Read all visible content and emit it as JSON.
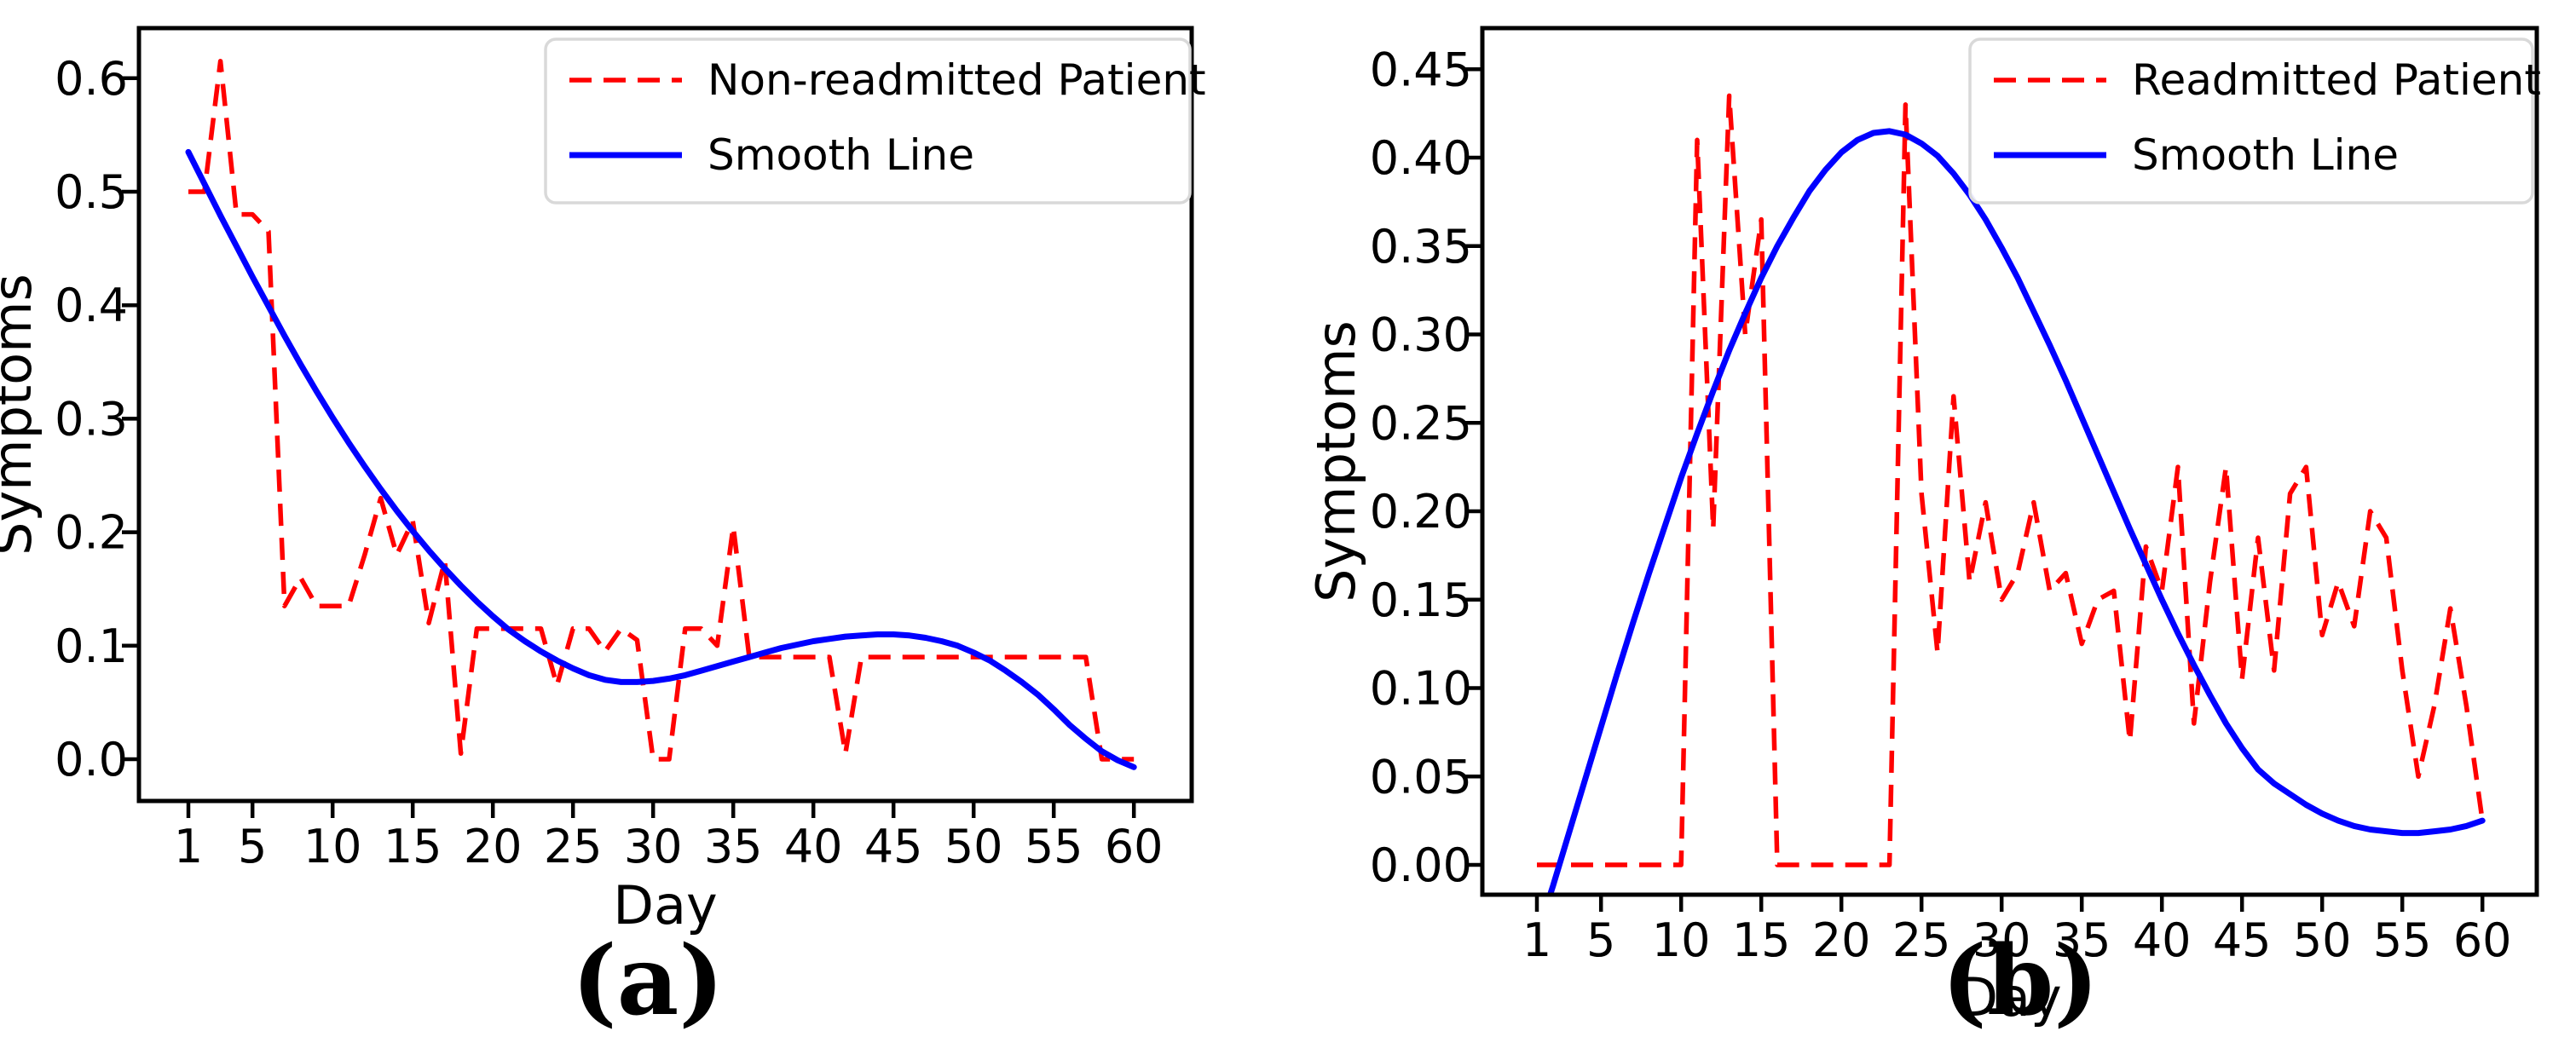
{
  "figure": {
    "description": "Two line charts of patient symptoms over 60 days",
    "colors": {
      "patient_line": "#ff0000",
      "smooth_line": "#0000ff",
      "axis": "#000000",
      "legend_border": "#d9d9d9"
    }
  },
  "chart_data": [
    {
      "type": "line",
      "panel": "a",
      "caption": "(a)",
      "xlabel": "Day",
      "ylabel": "Symptoms",
      "x_range": [
        1,
        60
      ],
      "x_ticks": [
        1,
        5,
        10,
        15,
        20,
        25,
        30,
        35,
        40,
        45,
        50,
        55,
        60
      ],
      "y_ticks": {
        "values": [
          0.0,
          0.1,
          0.2,
          0.3,
          0.4,
          0.5,
          0.6
        ],
        "labels": [
          "0.0",
          "0.1",
          "0.2",
          "0.3",
          "0.4",
          "0.5",
          "0.6"
        ]
      },
      "ylim": [
        -0.037,
        0.644
      ],
      "grid": false,
      "legend": {
        "position": "upper right",
        "entries": [
          {
            "label": "Non-readmitted Patient",
            "color": "#ff0000",
            "style": "dashed"
          },
          {
            "label": "Smooth Line",
            "color": "#0000ff",
            "style": "solid"
          }
        ]
      },
      "series": [
        {
          "name": "Non-readmitted Patient",
          "color": "#ff0000",
          "style": "dashed",
          "values": [
            0.5,
            0.5,
            0.615,
            0.48,
            0.48,
            0.465,
            0.135,
            0.16,
            0.135,
            0.135,
            0.135,
            0.18,
            0.23,
            0.18,
            0.21,
            0.12,
            0.175,
            0.005,
            0.115,
            0.115,
            0.115,
            0.115,
            0.115,
            0.065,
            0.115,
            0.115,
            0.095,
            0.115,
            0.105,
            0.0,
            0.0,
            0.115,
            0.115,
            0.1,
            0.205,
            0.09,
            0.09,
            0.09,
            0.09,
            0.09,
            0.09,
            0.005,
            0.09,
            0.09,
            0.09,
            0.09,
            0.09,
            0.09,
            0.09,
            0.09,
            0.09,
            0.09,
            0.09,
            0.09,
            0.09,
            0.09,
            0.09,
            0.0,
            0.0,
            0.0
          ]
        },
        {
          "name": "Smooth Line",
          "color": "#0000ff",
          "style": "solid",
          "values": [
            0.535,
            0.507,
            0.479,
            0.452,
            0.425,
            0.399,
            0.373,
            0.348,
            0.324,
            0.301,
            0.279,
            0.258,
            0.238,
            0.219,
            0.201,
            0.184,
            0.168,
            0.153,
            0.139,
            0.126,
            0.114,
            0.104,
            0.095,
            0.087,
            0.08,
            0.074,
            0.07,
            0.068,
            0.068,
            0.069,
            0.071,
            0.074,
            0.078,
            0.082,
            0.086,
            0.09,
            0.094,
            0.098,
            0.101,
            0.104,
            0.106,
            0.108,
            0.109,
            0.11,
            0.11,
            0.109,
            0.107,
            0.104,
            0.1,
            0.094,
            0.087,
            0.078,
            0.068,
            0.057,
            0.044,
            0.03,
            0.018,
            0.007,
            -0.001,
            -0.007
          ]
        }
      ]
    },
    {
      "type": "line",
      "panel": "b",
      "caption": "(b)",
      "xlabel": "Day",
      "ylabel": "Symptoms",
      "x_range": [
        1,
        60
      ],
      "x_ticks": [
        1,
        5,
        10,
        15,
        20,
        25,
        30,
        35,
        40,
        45,
        50,
        55,
        60
      ],
      "y_ticks": {
        "values": [
          0.0,
          0.05,
          0.1,
          0.15,
          0.2,
          0.25,
          0.3,
          0.35,
          0.4,
          0.45
        ],
        "labels": [
          "0.00",
          "0.05",
          "0.10",
          "0.15",
          "0.20",
          "0.25",
          "0.30",
          "0.35",
          "0.40",
          "0.45"
        ]
      },
      "ylim": [
        -0.017,
        0.473
      ],
      "grid": false,
      "legend": {
        "position": "upper right",
        "entries": [
          {
            "label": "Readmitted Patient",
            "color": "#ff0000",
            "style": "dashed"
          },
          {
            "label": "Smooth Line",
            "color": "#0000ff",
            "style": "solid"
          }
        ]
      },
      "series": [
        {
          "name": "Readmitted Patient",
          "color": "#ff0000",
          "style": "dashed",
          "values": [
            0.0,
            0.0,
            0.0,
            0.0,
            0.0,
            0.0,
            0.0,
            0.0,
            0.0,
            0.0,
            0.41,
            0.19,
            0.435,
            0.3,
            0.365,
            0.0,
            0.0,
            0.0,
            0.0,
            0.0,
            0.0,
            0.0,
            0.0,
            0.43,
            0.21,
            0.12,
            0.265,
            0.16,
            0.205,
            0.15,
            0.165,
            0.205,
            0.155,
            0.165,
            0.125,
            0.15,
            0.155,
            0.07,
            0.18,
            0.155,
            0.225,
            0.08,
            0.16,
            0.225,
            0.105,
            0.185,
            0.11,
            0.21,
            0.225,
            0.13,
            0.16,
            0.135,
            0.2,
            0.185,
            0.11,
            0.05,
            0.09,
            0.145,
            0.09,
            0.025
          ]
        },
        {
          "name": "Smooth Line",
          "color": "#0000ff",
          "style": "solid",
          "values": [
            -0.04,
            -0.012,
            0.018,
            0.048,
            0.078,
            0.108,
            0.137,
            0.165,
            0.192,
            0.219,
            0.244,
            0.268,
            0.291,
            0.312,
            0.332,
            0.35,
            0.366,
            0.381,
            0.393,
            0.403,
            0.41,
            0.414,
            0.415,
            0.413,
            0.408,
            0.401,
            0.391,
            0.379,
            0.365,
            0.349,
            0.332,
            0.313,
            0.294,
            0.274,
            0.253,
            0.232,
            0.211,
            0.19,
            0.17,
            0.15,
            0.131,
            0.113,
            0.096,
            0.08,
            0.066,
            0.054,
            0.046,
            0.04,
            0.034,
            0.029,
            0.025,
            0.022,
            0.02,
            0.019,
            0.018,
            0.018,
            0.019,
            0.02,
            0.022,
            0.025
          ]
        }
      ]
    }
  ]
}
